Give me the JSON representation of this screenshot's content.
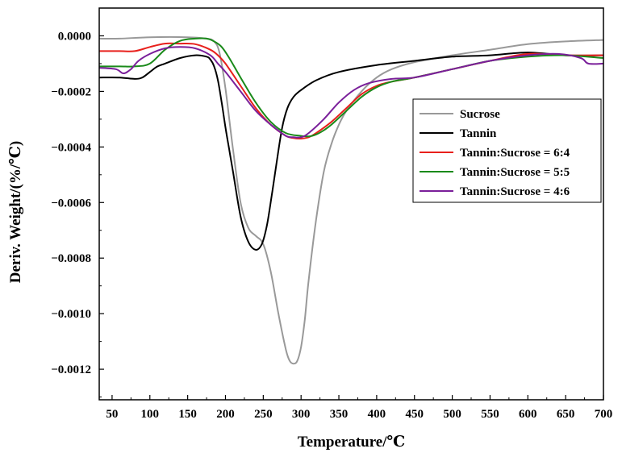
{
  "chart_data": {
    "type": "line",
    "title": "",
    "xlabel": "Temperature/℃",
    "ylabel": "Deriv. Weight/(%/℃)",
    "xlim": [
      33,
      700
    ],
    "ylim": [
      -0.00131,
      0.0001
    ],
    "x_ticks": [
      50,
      100,
      150,
      200,
      250,
      300,
      350,
      400,
      450,
      500,
      550,
      600,
      650,
      700
    ],
    "x_tick_labels": [
      "50",
      "100",
      "150",
      "200",
      "250",
      "300",
      "350",
      "400",
      "450",
      "500",
      "550",
      "600",
      "650",
      "700"
    ],
    "y_ticks": [
      0.0,
      -0.0002,
      -0.0004,
      -0.0006,
      -0.0008,
      -0.001,
      -0.0012
    ],
    "y_tick_labels": [
      "0.0000",
      "−0.0002",
      "−0.0004",
      "−0.0006",
      "−0.0008",
      "−0.0010",
      "−0.0012"
    ],
    "grid": false,
    "legend_position": "right",
    "series": [
      {
        "name": "Sucrose",
        "color": "#999999",
        "x": [
          33,
          60,
          100,
          150,
          175,
          185,
          192,
          200,
          210,
          220,
          230,
          240,
          250,
          260,
          270,
          280,
          285,
          290,
          295,
          300,
          305,
          310,
          320,
          330,
          340,
          350,
          360,
          380,
          400,
          420,
          450,
          500,
          550,
          600,
          650,
          700
        ],
        "y": [
          -1e-05,
          -1e-05,
          -5e-06,
          -5e-06,
          -1e-05,
          -2e-05,
          -6e-05,
          -0.00019,
          -0.00041,
          -0.0006,
          -0.00069,
          -0.00072,
          -0.00075,
          -0.00085,
          -0.001,
          -0.00113,
          -0.00117,
          -0.00118,
          -0.00117,
          -0.00112,
          -0.00102,
          -0.00088,
          -0.00066,
          -0.00049,
          -0.00039,
          -0.00032,
          -0.00027,
          -0.0002,
          -0.00015,
          -0.00012,
          -9.5e-05,
          -7e-05,
          -5e-05,
          -3e-05,
          -2e-05,
          -1.5e-05
        ]
      },
      {
        "name": "Tannin",
        "color": "#000000",
        "x": [
          33,
          60,
          80,
          90,
          100,
          110,
          120,
          140,
          160,
          175,
          180,
          185,
          190,
          195,
          200,
          205,
          210,
          220,
          230,
          240,
          248,
          255,
          262,
          268,
          275,
          282,
          290,
          300,
          320,
          350,
          400,
          450,
          500,
          550,
          600,
          650,
          700
        ],
        "y": [
          -0.00015,
          -0.00015,
          -0.000155,
          -0.00015,
          -0.00013,
          -0.00011,
          -0.0001,
          -8e-05,
          -7e-05,
          -7.5e-05,
          -8.5e-05,
          -0.00011,
          -0.00016,
          -0.00024,
          -0.00033,
          -0.00041,
          -0.00049,
          -0.00065,
          -0.00074,
          -0.00077,
          -0.00075,
          -0.00068,
          -0.00056,
          -0.00045,
          -0.00033,
          -0.00026,
          -0.00022,
          -0.000195,
          -0.00016,
          -0.00013,
          -0.000105,
          -9e-05,
          -7.5e-05,
          -7e-05,
          -6e-05,
          -7e-05,
          -7e-05
        ]
      },
      {
        "name": "Tannin:Sucrose = 6:4",
        "color": "#e8201c",
        "x": [
          33,
          60,
          80,
          100,
          120,
          140,
          160,
          180,
          190,
          200,
          220,
          240,
          260,
          280,
          290,
          300,
          310,
          320,
          340,
          360,
          380,
          400,
          420,
          450,
          500,
          550,
          600,
          650,
          700
        ],
        "y": [
          -5.5e-05,
          -5.5e-05,
          -5.5e-05,
          -4e-05,
          -2.8e-05,
          -2.8e-05,
          -3e-05,
          -5e-05,
          -7e-05,
          -0.0001,
          -0.00018,
          -0.00026,
          -0.00032,
          -0.00036,
          -0.000368,
          -0.00037,
          -0.000365,
          -0.00035,
          -0.00031,
          -0.00026,
          -0.00021,
          -0.00018,
          -0.000165,
          -0.00015,
          -0.00012,
          -9e-05,
          -6.5e-05,
          -7e-05,
          -7e-05
        ]
      },
      {
        "name": "Tannin:Sucrose = 5:5",
        "color": "#1a8a1a",
        "x": [
          33,
          60,
          80,
          100,
          120,
          140,
          160,
          175,
          185,
          195,
          205,
          220,
          240,
          260,
          280,
          300,
          310,
          320,
          330,
          340,
          360,
          380,
          400,
          420,
          450,
          500,
          550,
          600,
          650,
          700
        ],
        "y": [
          -0.00011,
          -0.00011,
          -0.00011,
          -0.0001,
          -5e-05,
          -1.8e-05,
          -1e-05,
          -1e-05,
          -2e-05,
          -4e-05,
          -8e-05,
          -0.00015,
          -0.00024,
          -0.00031,
          -0.00035,
          -0.00036,
          -0.000362,
          -0.000355,
          -0.00034,
          -0.00032,
          -0.00027,
          -0.00022,
          -0.000185,
          -0.000165,
          -0.00015,
          -0.00012,
          -9e-05,
          -7.5e-05,
          -7e-05,
          -8e-05
        ]
      },
      {
        "name": "Tannin:Sucrose = 4:6",
        "color": "#7a1f9a",
        "x": [
          33,
          55,
          65,
          75,
          85,
          100,
          120,
          140,
          160,
          180,
          190,
          200,
          220,
          240,
          260,
          280,
          290,
          300,
          310,
          330,
          350,
          370,
          390,
          420,
          450,
          500,
          550,
          600,
          640,
          670,
          680,
          700
        ],
        "y": [
          -0.000115,
          -0.00012,
          -0.000135,
          -0.00012,
          -9e-05,
          -6.5e-05,
          -4.5e-05,
          -4e-05,
          -4.5e-05,
          -7e-05,
          -0.0001,
          -0.00013,
          -0.0002,
          -0.00027,
          -0.00032,
          -0.00036,
          -0.000365,
          -0.000365,
          -0.00035,
          -0.0003,
          -0.00024,
          -0.000195,
          -0.00017,
          -0.000155,
          -0.00015,
          -0.00012,
          -9e-05,
          -7e-05,
          -6.5e-05,
          -8e-05,
          -0.0001,
          -0.0001
        ]
      }
    ]
  }
}
